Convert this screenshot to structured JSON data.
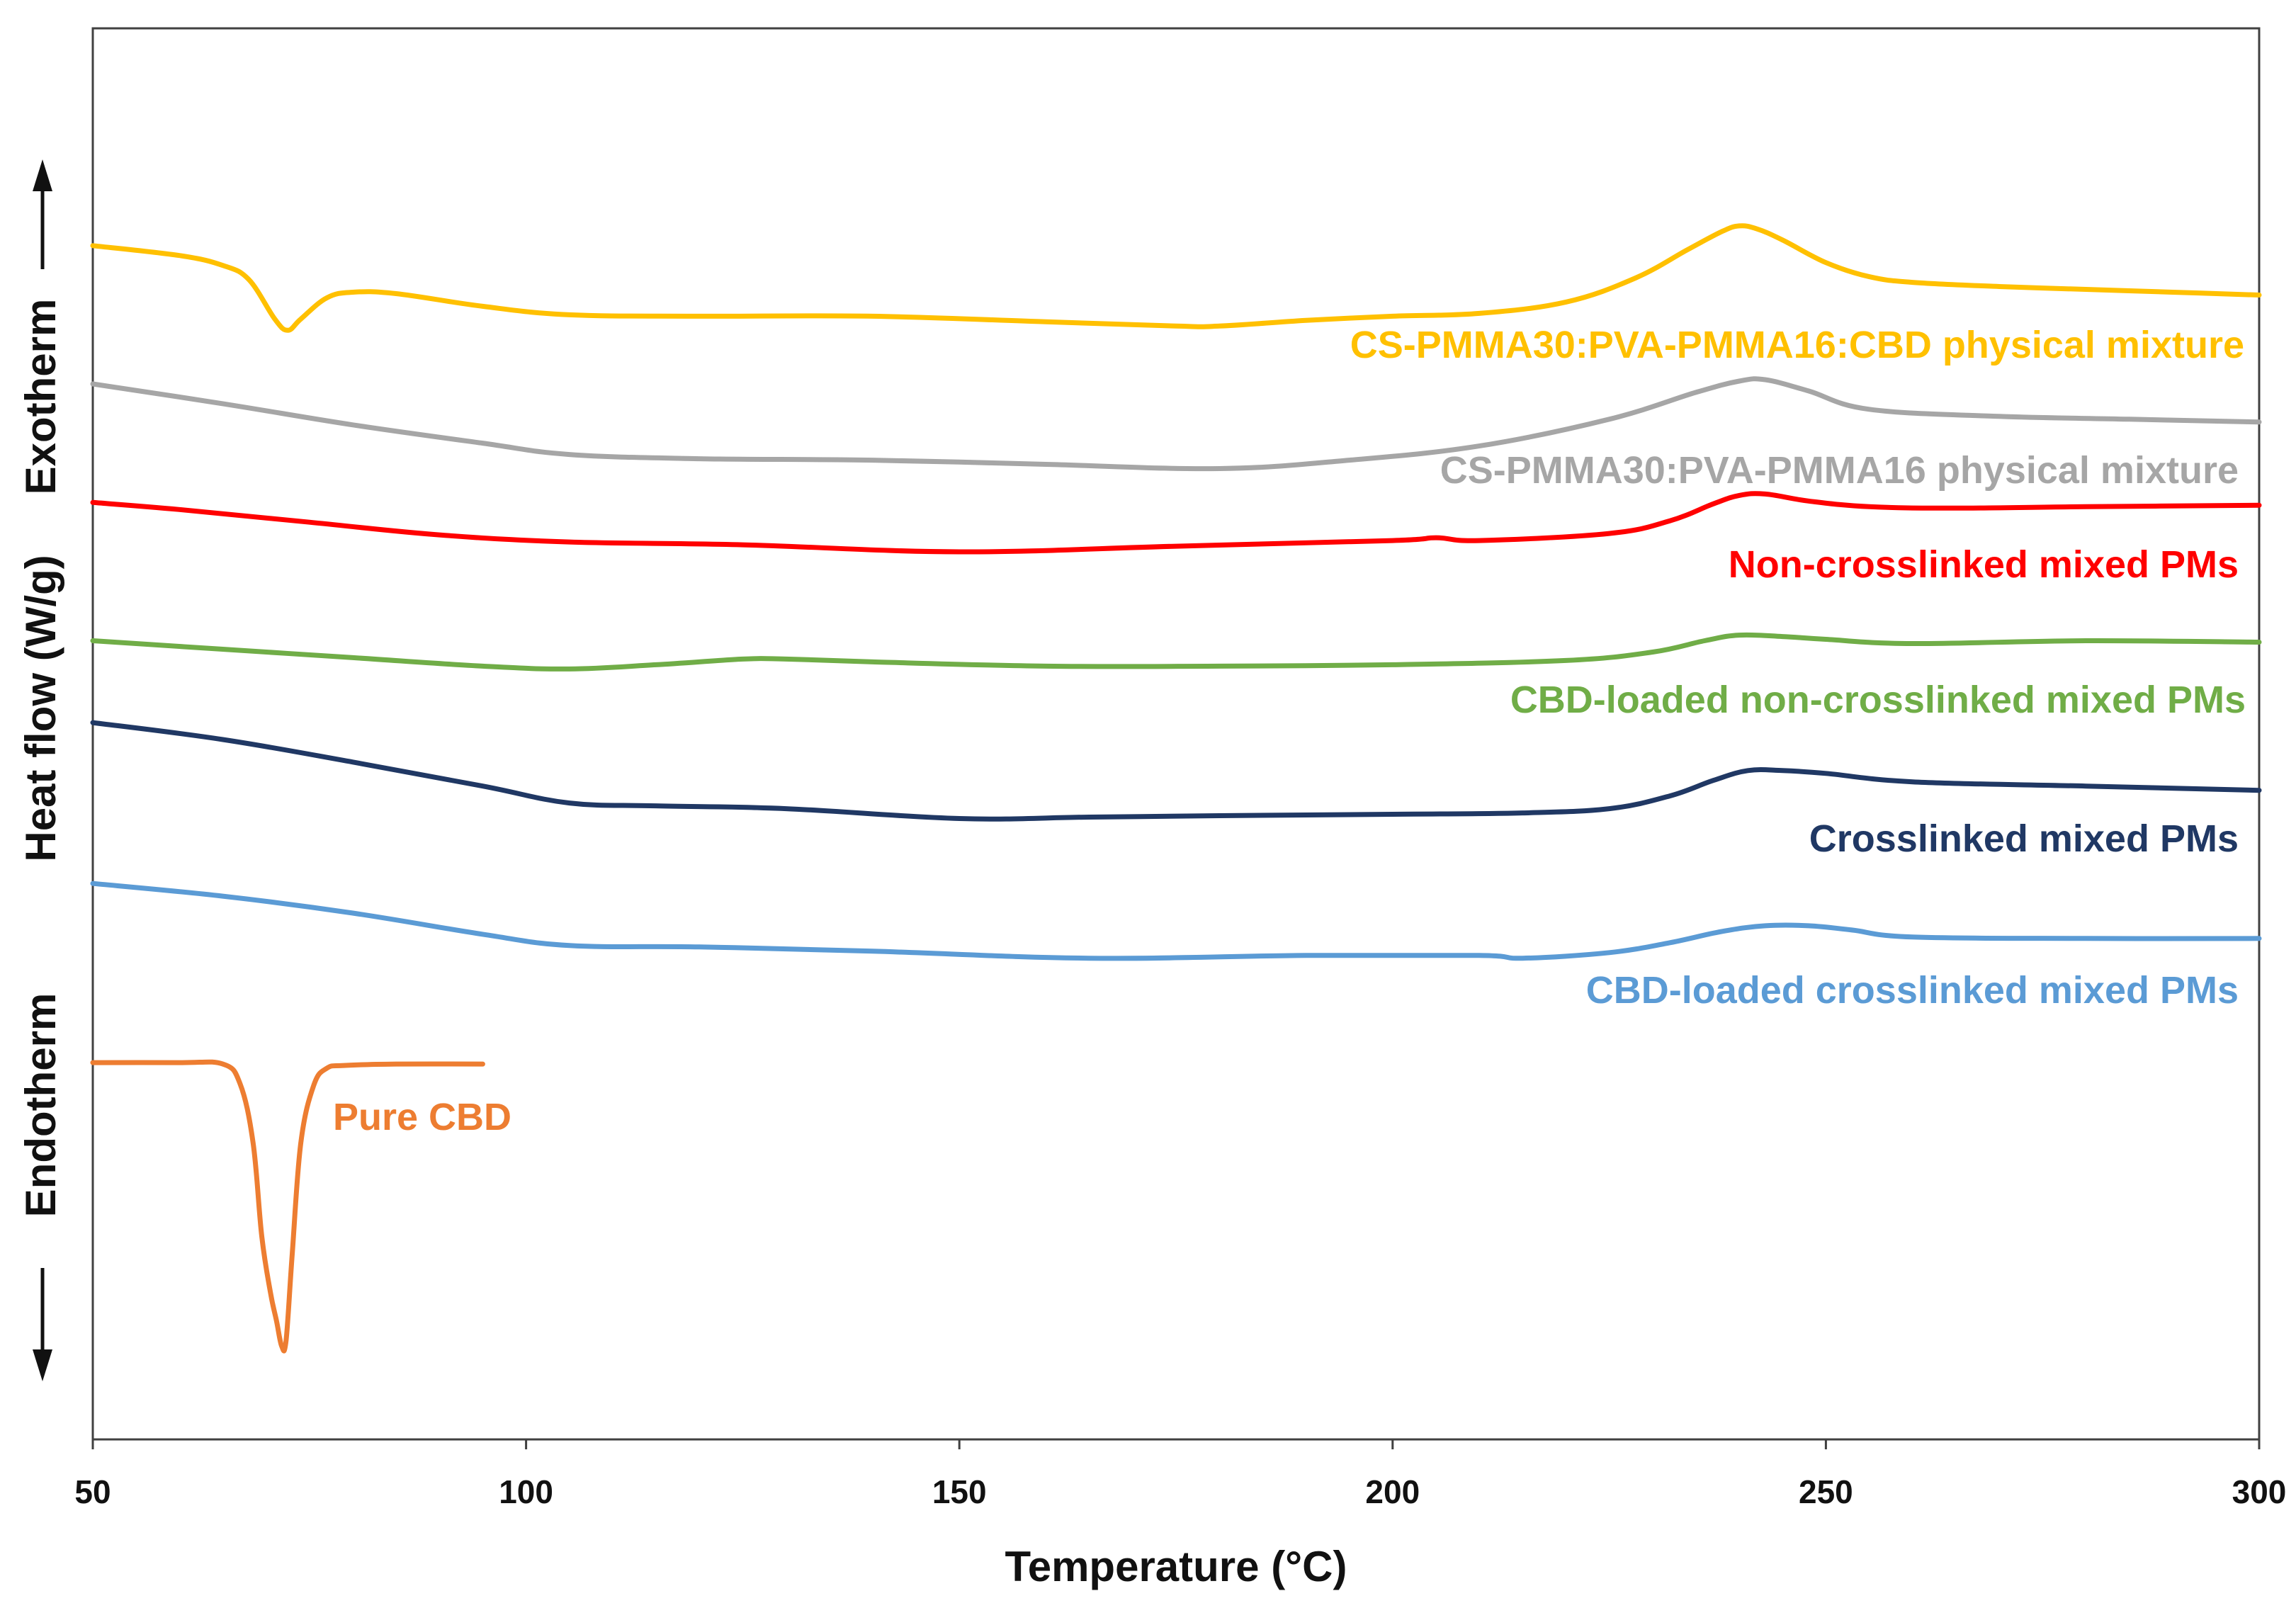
{
  "chart_data": {
    "type": "line",
    "title": "",
    "xlabel": "Temperature (°C)",
    "ylabel": "Heat flow (W/g)",
    "y_direction_up": "Exotherm",
    "y_direction_down": "Endotherm",
    "xlim": [
      50,
      300
    ],
    "ylim": [
      0,
      100
    ],
    "xticks": [
      "50",
      "100",
      "150",
      "200",
      "250",
      "300"
    ],
    "grid": false,
    "y_ticks_shown": false,
    "note": "Heat flow values are relative (arbitrary units, stacked curves); y axis has no numeric ticks.",
    "series": [
      {
        "name": "CS-PMMA30:PVA-PMMA16:CBD physical mixture",
        "color": "#FFC000",
        "x": [
          50,
          60,
          65,
          68,
          71,
          72.5,
          74,
          77,
          80,
          85,
          95,
          105,
          120,
          140,
          160,
          175,
          180,
          190,
          200,
          210,
          220,
          228,
          234,
          238,
          240,
          242,
          245,
          250,
          255,
          260,
          270,
          280,
          290,
          300
        ],
        "y": [
          84.6,
          83.9,
          83.2,
          82.2,
          79.4,
          78.6,
          79.4,
          80.9,
          81.3,
          81.2,
          80.3,
          79.7,
          79.6,
          79.6,
          79.2,
          78.9,
          78.9,
          79.3,
          79.6,
          79.8,
          80.6,
          82.3,
          84.3,
          85.6,
          86.0,
          85.8,
          85.0,
          83.4,
          82.4,
          82.0,
          81.7,
          81.5,
          81.3,
          81.1
        ]
      },
      {
        "name": "CS-PMMA30:PVA-PMMA16 physical mixture",
        "color": "#A6A6A6",
        "x": [
          50,
          65,
          80,
          95,
          105,
          120,
          140,
          160,
          180,
          195,
          210,
          225,
          235,
          240,
          243,
          248,
          255,
          270,
          285,
          300
        ],
        "y": [
          74.8,
          73.4,
          71.9,
          70.6,
          69.8,
          69.5,
          69.4,
          69.1,
          68.8,
          69.4,
          70.4,
          72.3,
          74.2,
          75.0,
          75.1,
          74.3,
          73.0,
          72.5,
          72.3,
          72.1
        ]
      },
      {
        "name": "Non-crosslinked mixed PMs",
        "color": "#FF0000",
        "x": [
          50,
          60,
          75,
          90,
          105,
          125,
          150,
          175,
          200,
          205,
          210,
          225,
          232,
          237,
          240,
          243,
          248,
          255,
          265,
          280,
          300
        ],
        "y": [
          66.4,
          65.9,
          65.0,
          64.1,
          63.6,
          63.4,
          62.9,
          63.3,
          63.7,
          63.9,
          63.7,
          64.2,
          65.1,
          66.3,
          66.9,
          67.0,
          66.5,
          66.1,
          66.0,
          66.1,
          66.2
        ]
      },
      {
        "name": "CBD-loaded non-crosslinked mixed PMs",
        "color": "#70AD47",
        "x": [
          50,
          65,
          80,
          95,
          105,
          115,
          125,
          130,
          140,
          160,
          180,
          200,
          220,
          230,
          236,
          240,
          245,
          250,
          260,
          280,
          300
        ],
        "y": [
          56.6,
          56.0,
          55.4,
          54.8,
          54.6,
          54.9,
          55.3,
          55.3,
          55.1,
          54.8,
          54.8,
          54.9,
          55.2,
          55.8,
          56.6,
          57.0,
          56.9,
          56.7,
          56.4,
          56.6,
          56.5
        ]
      },
      {
        "name": "Crosslinked mixed PMs",
        "color": "#203864",
        "x": [
          50,
          65,
          80,
          95,
          105,
          115,
          130,
          150,
          165,
          180,
          200,
          215,
          225,
          232,
          237,
          241,
          245,
          250,
          260,
          280,
          300
        ],
        "y": [
          50.8,
          49.6,
          48.0,
          46.3,
          45.1,
          44.9,
          44.7,
          44.0,
          44.1,
          44.2,
          44.3,
          44.4,
          44.7,
          45.6,
          46.7,
          47.4,
          47.4,
          47.2,
          46.6,
          46.3,
          46.0
        ]
      },
      {
        "name": "CBD-loaded crosslinked mixed PMs",
        "color": "#5B9BD5",
        "x": [
          50,
          65,
          80,
          95,
          105,
          120,
          140,
          165,
          190,
          210,
          215,
          225,
          232,
          238,
          243,
          248,
          253,
          260,
          280,
          300
        ],
        "y": [
          39.4,
          38.5,
          37.3,
          35.8,
          35.0,
          34.9,
          34.6,
          34.1,
          34.3,
          34.3,
          34.1,
          34.5,
          35.2,
          36.0,
          36.4,
          36.4,
          36.1,
          35.6,
          35.5,
          35.5
        ]
      },
      {
        "name": "Pure CBD",
        "color": "#ED7D31",
        "x": [
          50,
          60,
          65,
          67,
          68.5,
          69.5,
          70.5,
          71.2,
          71.8,
          72.3,
          73,
          74,
          75.5,
          77,
          79,
          85,
          95
        ],
        "y": [
          26.7,
          26.7,
          26.6,
          25.2,
          21.0,
          14.4,
          10.4,
          8.4,
          6.6,
          7.0,
          13.0,
          21.0,
          25.1,
          26.3,
          26.5,
          26.6,
          26.6
        ]
      }
    ]
  }
}
